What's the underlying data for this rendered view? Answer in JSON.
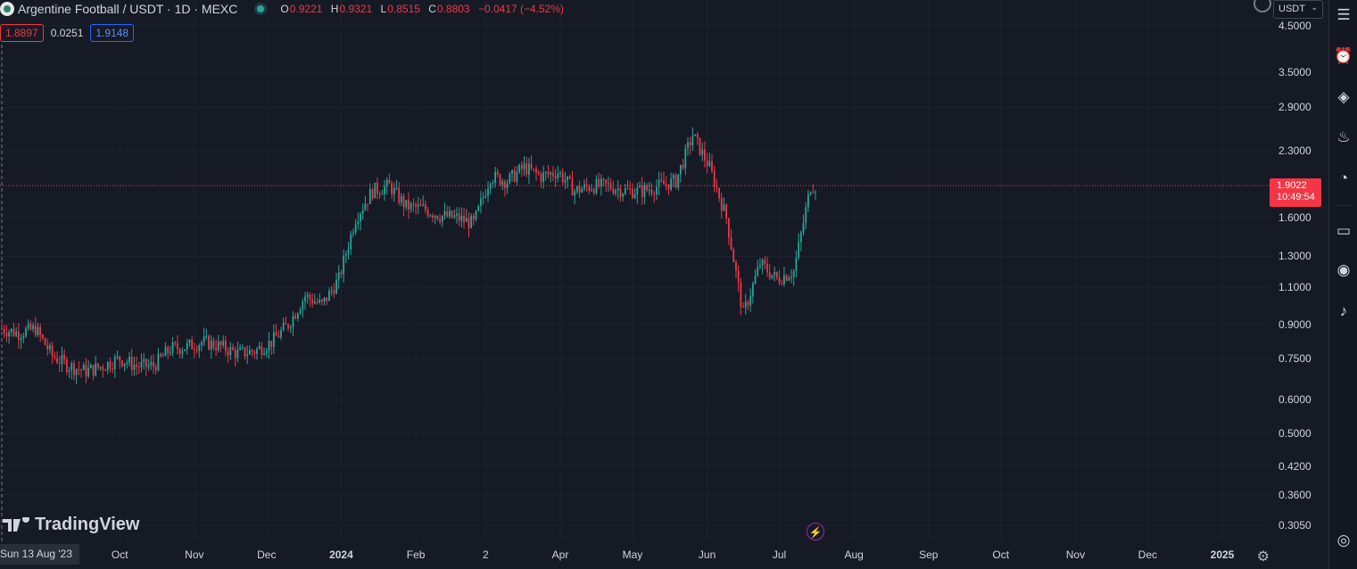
{
  "symbol": {
    "title": "Argentine Football / USDT · 1D · MEXC",
    "ohlc": [
      {
        "k": "O",
        "v": "0.9221"
      },
      {
        "k": "H",
        "v": "0.9321"
      },
      {
        "k": "L",
        "v": "0.8515"
      },
      {
        "k": "C",
        "v": "0.8803"
      }
    ],
    "change": "−0.0417 (−4.52%)"
  },
  "indicator": {
    "left": "1.8897",
    "mid": "0.0251",
    "right": "1.9148"
  },
  "price_axis": {
    "unit": "USDT",
    "labels": [
      "4.5000",
      "3.5000",
      "2.9000",
      "2.3000",
      "1.6000",
      "1.3000",
      "1.1000",
      "0.9000",
      "0.7500",
      "0.6000",
      "0.5000",
      "0.4200",
      "0.3600",
      "0.3050"
    ],
    "current_price": "1.9022",
    "countdown": "10:49:54"
  },
  "time_axis": {
    "cursor_date": "Sun 13 Aug '23",
    "labels": [
      {
        "t": "Oct",
        "bold": false
      },
      {
        "t": "Nov",
        "bold": false
      },
      {
        "t": "Dec",
        "bold": false
      },
      {
        "t": "2024",
        "bold": true
      },
      {
        "t": "Feb",
        "bold": false
      },
      {
        "t": "2",
        "bold": false
      },
      {
        "t": "Apr",
        "bold": false
      },
      {
        "t": "May",
        "bold": false
      },
      {
        "t": "Jun",
        "bold": false
      },
      {
        "t": "Jul",
        "bold": false
      },
      {
        "t": "Aug",
        "bold": false
      },
      {
        "t": "Sep",
        "bold": false
      },
      {
        "t": "Oct",
        "bold": false
      },
      {
        "t": "Nov",
        "bold": false
      },
      {
        "t": "Dec",
        "bold": false
      },
      {
        "t": "2025",
        "bold": true
      }
    ]
  },
  "watermark": "TradingView",
  "colors": {
    "up": "#26a69a",
    "down": "#f23645",
    "bg": "#161a25",
    "grid": "#1f2330"
  },
  "chart_data": {
    "type": "candlestick",
    "scale": "log",
    "x_start": "2023-08-13",
    "x_end": "2024-07-16",
    "ylim": [
      0.28,
      5.0
    ],
    "close_path": [
      [
        "2023-08-13",
        0.88
      ],
      [
        "2023-08-20",
        0.86
      ],
      [
        "2023-08-27",
        0.88
      ],
      [
        "2023-09-03",
        0.76
      ],
      [
        "2023-09-10",
        0.72
      ],
      [
        "2023-09-17",
        0.7
      ],
      [
        "2023-09-24",
        0.72
      ],
      [
        "2023-10-01",
        0.75
      ],
      [
        "2023-10-08",
        0.72
      ],
      [
        "2023-10-15",
        0.72
      ],
      [
        "2023-10-22",
        0.79
      ],
      [
        "2023-10-29",
        0.8
      ],
      [
        "2023-11-05",
        0.82
      ],
      [
        "2023-11-12",
        0.8
      ],
      [
        "2023-11-19",
        0.77
      ],
      [
        "2023-11-26",
        0.78
      ],
      [
        "2023-12-03",
        0.82
      ],
      [
        "2023-12-10",
        0.9
      ],
      [
        "2023-12-17",
        1.05
      ],
      [
        "2023-12-24",
        1.0
      ],
      [
        "2023-12-31",
        1.15
      ],
      [
        "2024-01-07",
        1.6
      ],
      [
        "2024-01-14",
        1.85
      ],
      [
        "2024-01-21",
        1.9
      ],
      [
        "2024-01-28",
        1.7
      ],
      [
        "2024-02-04",
        1.68
      ],
      [
        "2024-02-11",
        1.62
      ],
      [
        "2024-02-18",
        1.6
      ],
      [
        "2024-02-25",
        1.55
      ],
      [
        "2024-03-03",
        2.0
      ],
      [
        "2024-03-10",
        1.95
      ],
      [
        "2024-03-17",
        2.1
      ],
      [
        "2024-03-24",
        2.0
      ],
      [
        "2024-03-31",
        2.05
      ],
      [
        "2024-04-07",
        1.85
      ],
      [
        "2024-04-14",
        1.9
      ],
      [
        "2024-04-21",
        1.9
      ],
      [
        "2024-04-28",
        1.85
      ],
      [
        "2024-05-05",
        1.85
      ],
      [
        "2024-05-12",
        1.9
      ],
      [
        "2024-05-19",
        1.95
      ],
      [
        "2024-05-26",
        2.5
      ],
      [
        "2024-06-02",
        2.1
      ],
      [
        "2024-06-09",
        1.6
      ],
      [
        "2024-06-16",
        0.95
      ],
      [
        "2024-06-23",
        1.25
      ],
      [
        "2024-06-30",
        1.15
      ],
      [
        "2024-07-07",
        1.2
      ],
      [
        "2024-07-14",
        1.9
      ]
    ]
  }
}
